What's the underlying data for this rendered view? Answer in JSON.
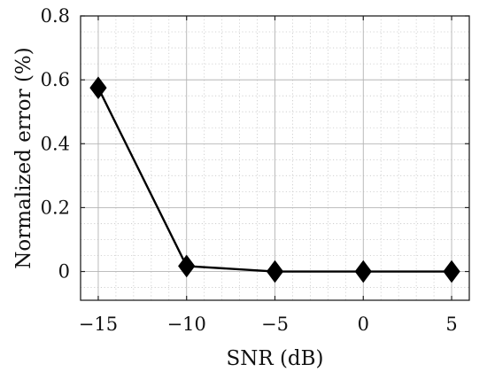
{
  "chart_data": {
    "type": "line",
    "title": "",
    "xlabel": "SNR (dB)",
    "ylabel": "Normalized error (%)",
    "x": [
      -15,
      -10,
      -5,
      0,
      5
    ],
    "series": [
      {
        "values": [
          0.575,
          0.017,
          0.0,
          0.0,
          0.0
        ],
        "color": "#000000",
        "marker": "diamond"
      }
    ],
    "xlim": [
      -16,
      6
    ],
    "ylim": [
      -0.09,
      0.8
    ],
    "xticks": [
      -15,
      -10,
      -5,
      0,
      5
    ],
    "xtick_labels": [
      "−15",
      "−10",
      "−5",
      "0",
      "5"
    ],
    "yticks": [
      0,
      0.2,
      0.4,
      0.6,
      0.8
    ],
    "ytick_labels": [
      "0",
      "0.2",
      "0.4",
      "0.6",
      "0.8"
    ],
    "grid": {
      "major": true,
      "minor": true,
      "major_color": "#b4b4b4",
      "minor_color": "#c8c8c8"
    },
    "legend": "none"
  }
}
